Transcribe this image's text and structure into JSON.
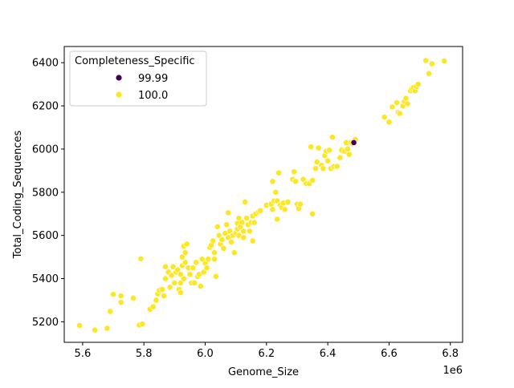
{
  "chart_data": {
    "type": "scatter",
    "xlabel": "Genome_Size",
    "ylabel": "Total_Coding_Sequences",
    "x_offset_label": "1e6",
    "xlim": [
      5.54,
      6.84
    ],
    "ylim": [
      5105,
      6475
    ],
    "x_ticks": [
      5.6,
      5.8,
      6.0,
      6.2,
      6.4,
      6.6,
      6.8
    ],
    "x_tick_labels": [
      "5.6",
      "5.8",
      "6.0",
      "6.2",
      "6.4",
      "6.6",
      "6.8"
    ],
    "y_ticks": [
      5200,
      5400,
      5600,
      5800,
      6000,
      6200,
      6400
    ],
    "y_tick_labels": [
      "5200",
      "5400",
      "5600",
      "5800",
      "6000",
      "6200",
      "6400"
    ],
    "grid": false,
    "legend": {
      "title": "Completeness_Specific",
      "placement": "top-left",
      "entries": [
        {
          "label": "99.99",
          "color": "#440154"
        },
        {
          "label": "100.0",
          "color": "#fde725"
        }
      ]
    },
    "series": [
      {
        "name": "99.99",
        "color": "#440154",
        "points": [
          [
            6.485,
            6030
          ]
        ]
      },
      {
        "name": "100.0",
        "color": "#fde725",
        "points": [
          [
            5.59,
            5183
          ],
          [
            5.64,
            5162
          ],
          [
            5.68,
            5170
          ],
          [
            5.69,
            5248
          ],
          [
            5.7,
            5327
          ],
          [
            5.725,
            5320
          ],
          [
            5.725,
            5290
          ],
          [
            5.765,
            5310
          ],
          [
            5.785,
            5185
          ],
          [
            5.795,
            5190
          ],
          [
            5.79,
            5492
          ],
          [
            5.82,
            5258
          ],
          [
            5.83,
            5270
          ],
          [
            5.84,
            5300
          ],
          [
            5.845,
            5330
          ],
          [
            5.85,
            5345
          ],
          [
            5.86,
            5350
          ],
          [
            5.865,
            5320
          ],
          [
            5.87,
            5400
          ],
          [
            5.87,
            5455
          ],
          [
            5.88,
            5430
          ],
          [
            5.885,
            5360
          ],
          [
            5.89,
            5415
          ],
          [
            5.895,
            5455
          ],
          [
            5.9,
            5380
          ],
          [
            5.905,
            5430
          ],
          [
            5.91,
            5440
          ],
          [
            5.915,
            5350
          ],
          [
            5.92,
            5335
          ],
          [
            5.92,
            5380
          ],
          [
            5.92,
            5420
          ],
          [
            5.925,
            5460
          ],
          [
            5.925,
            5500
          ],
          [
            5.93,
            5550
          ],
          [
            5.93,
            5400
          ],
          [
            5.935,
            5475
          ],
          [
            5.935,
            5520
          ],
          [
            5.94,
            5560
          ],
          [
            5.94,
            5560
          ],
          [
            5.945,
            5450
          ],
          [
            5.95,
            5420
          ],
          [
            5.955,
            5380
          ],
          [
            5.96,
            5450
          ],
          [
            5.965,
            5380
          ],
          [
            5.97,
            5475
          ],
          [
            5.975,
            5410
          ],
          [
            5.98,
            5420
          ],
          [
            5.985,
            5365
          ],
          [
            5.99,
            5490
          ],
          [
            5.995,
            5430
          ],
          [
            6.0,
            5470
          ],
          [
            6.005,
            5450
          ],
          [
            6.01,
            5490
          ],
          [
            6.015,
            5545
          ],
          [
            6.02,
            5555
          ],
          [
            6.025,
            5575
          ],
          [
            6.03,
            5520
          ],
          [
            6.03,
            5490
          ],
          [
            6.035,
            5410
          ],
          [
            6.04,
            5640
          ],
          [
            6.045,
            5600
          ],
          [
            6.05,
            5560
          ],
          [
            6.055,
            5580
          ],
          [
            6.06,
            5540
          ],
          [
            6.065,
            5610
          ],
          [
            6.07,
            5650
          ],
          [
            6.075,
            5590
          ],
          [
            6.075,
            5705
          ],
          [
            6.08,
            5620
          ],
          [
            6.085,
            5570
          ],
          [
            6.09,
            5600
          ],
          [
            6.095,
            5520
          ],
          [
            6.1,
            5610
          ],
          [
            6.105,
            5630
          ],
          [
            6.105,
            5655
          ],
          [
            6.11,
            5680
          ],
          [
            6.11,
            5600
          ],
          [
            6.115,
            5640
          ],
          [
            6.12,
            5660
          ],
          [
            6.125,
            5620
          ],
          [
            6.125,
            5590
          ],
          [
            6.13,
            5755
          ],
          [
            6.135,
            5680
          ],
          [
            6.14,
            5650
          ],
          [
            6.145,
            5620
          ],
          [
            6.15,
            5660
          ],
          [
            6.155,
            5690
          ],
          [
            6.155,
            5575
          ],
          [
            6.16,
            5660
          ],
          [
            6.165,
            5700
          ],
          [
            6.175,
            5710
          ],
          [
            6.18,
            5715
          ],
          [
            6.2,
            5740
          ],
          [
            6.215,
            5745
          ],
          [
            6.22,
            5720
          ],
          [
            6.22,
            5850
          ],
          [
            6.225,
            5760
          ],
          [
            6.23,
            5800
          ],
          [
            6.235,
            5760
          ],
          [
            6.235,
            5675
          ],
          [
            6.24,
            5890
          ],
          [
            6.245,
            5740
          ],
          [
            6.25,
            5730
          ],
          [
            6.255,
            5750
          ],
          [
            6.26,
            5720
          ],
          [
            6.27,
            5755
          ],
          [
            6.285,
            5860
          ],
          [
            6.29,
            5895
          ],
          [
            6.295,
            5850
          ],
          [
            6.3,
            5745
          ],
          [
            6.305,
            5725
          ],
          [
            6.31,
            5745
          ],
          [
            6.32,
            5860
          ],
          [
            6.33,
            5840
          ],
          [
            6.34,
            5840
          ],
          [
            6.345,
            6010
          ],
          [
            6.35,
            5700
          ],
          [
            6.35,
            5855
          ],
          [
            6.36,
            5910
          ],
          [
            6.365,
            5940
          ],
          [
            6.37,
            6005
          ],
          [
            6.38,
            5925
          ],
          [
            6.385,
            5910
          ],
          [
            6.39,
            5970
          ],
          [
            6.395,
            5990
          ],
          [
            6.4,
            5945
          ],
          [
            6.405,
            5995
          ],
          [
            6.41,
            5910
          ],
          [
            6.415,
            6055
          ],
          [
            6.42,
            5920
          ],
          [
            6.43,
            5920
          ],
          [
            6.44,
            5960
          ],
          [
            6.445,
            5995
          ],
          [
            6.455,
            5990
          ],
          [
            6.46,
            6030
          ],
          [
            6.465,
            6000
          ],
          [
            6.47,
            5975
          ],
          [
            6.475,
            6030
          ],
          [
            6.48,
            6025
          ],
          [
            6.49,
            6045
          ],
          [
            6.585,
            6148
          ],
          [
            6.6,
            6125
          ],
          [
            6.61,
            6195
          ],
          [
            6.625,
            6215
          ],
          [
            6.63,
            6170
          ],
          [
            6.635,
            6165
          ],
          [
            6.645,
            6200
          ],
          [
            6.65,
            6220
          ],
          [
            6.655,
            6235
          ],
          [
            6.66,
            6210
          ],
          [
            6.67,
            6270
          ],
          [
            6.675,
            6280
          ],
          [
            6.68,
            6285
          ],
          [
            6.685,
            6270
          ],
          [
            6.69,
            6290
          ],
          [
            6.695,
            6300
          ],
          [
            6.72,
            6410
          ],
          [
            6.73,
            6350
          ],
          [
            6.74,
            6395
          ],
          [
            6.78,
            6408
          ]
        ]
      }
    ]
  }
}
